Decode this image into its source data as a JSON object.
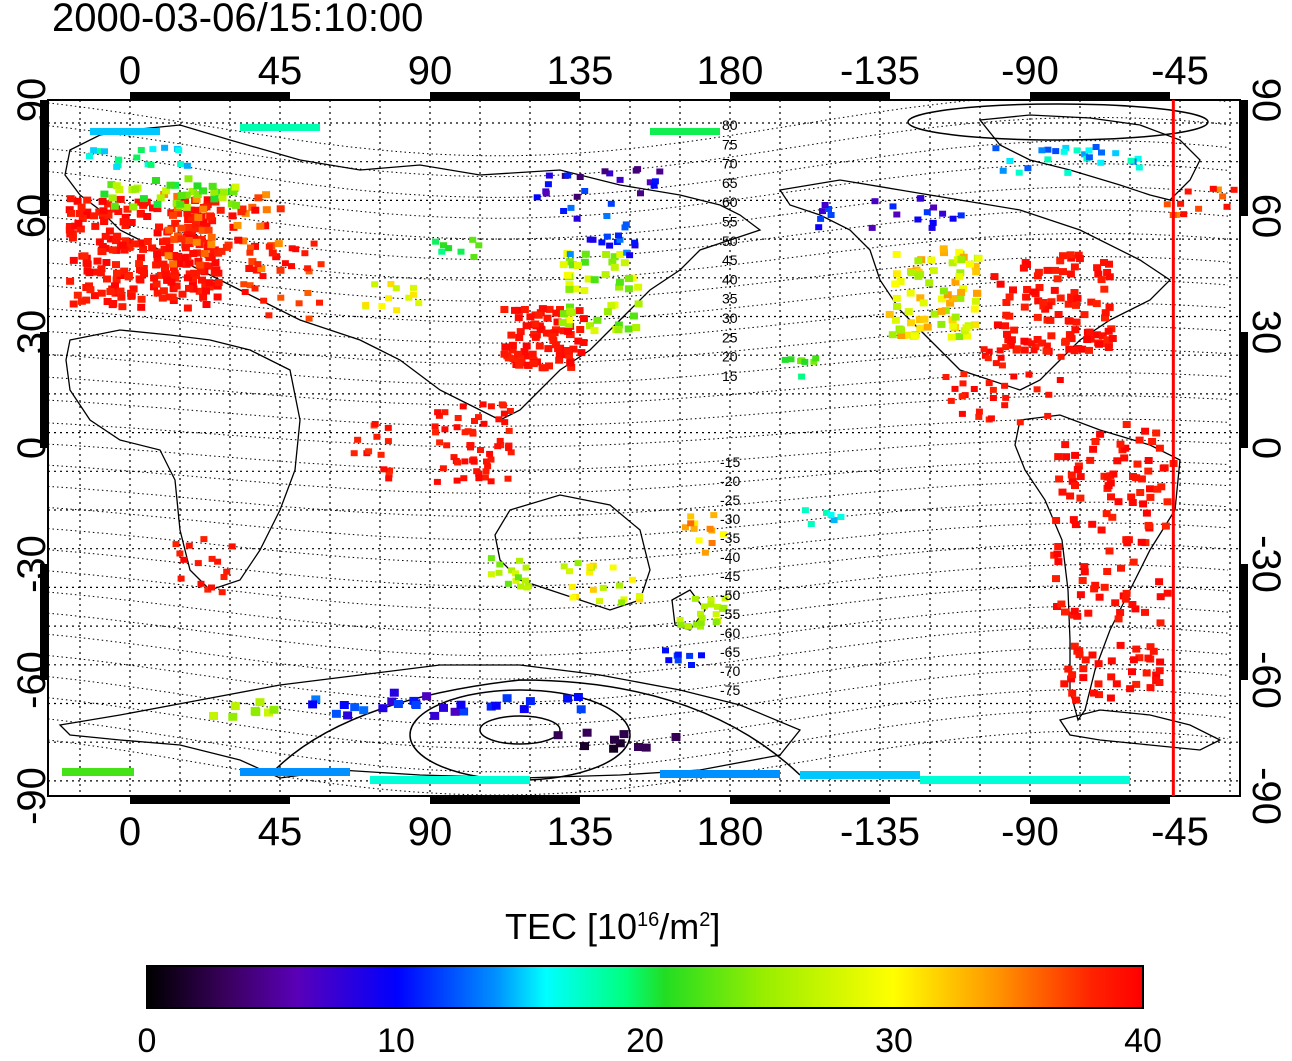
{
  "title": "2000-03-06/15:10:00",
  "map": {
    "top_lon_labels": [
      "0",
      "45",
      "90",
      "135",
      "180",
      "-135",
      "-90",
      "-45"
    ],
    "bottom_lon_labels": [
      "0",
      "45",
      "90",
      "135",
      "180",
      "-135",
      "-90",
      "-45"
    ],
    "left_lat_labels": [
      "90",
      "60",
      "30",
      "0",
      "-30",
      "-60",
      "-90"
    ],
    "right_lat_labels": [
      "90",
      "60",
      "30",
      "0",
      "-30",
      "-60",
      "-90"
    ],
    "contour_labels_north": [
      "80",
      "75",
      "70",
      "65",
      "60",
      "55",
      "50",
      "45",
      "40",
      "35",
      "30",
      "25",
      "20",
      "15"
    ],
    "contour_labels_south": [
      "-15",
      "-20",
      "-25",
      "-30",
      "-35",
      "-40",
      "-45",
      "-50",
      "-55",
      "-60",
      "-65",
      "-70",
      "-75"
    ],
    "terminator_longitude": -47,
    "terminator_color": "#ff0000"
  },
  "colorbar": {
    "title_main": "TEC  [10",
    "title_exp1": "16",
    "title_mid": "/m",
    "title_exp2": "2",
    "title_end": "]",
    "ticks": [
      "0",
      "10",
      "20",
      "30",
      "40"
    ],
    "min": 0,
    "max": 40,
    "colors": [
      "#000000",
      "#5a00b8",
      "#0000ff",
      "#00ffff",
      "#22dd22",
      "#ffff00",
      "#ff0000"
    ]
  }
}
